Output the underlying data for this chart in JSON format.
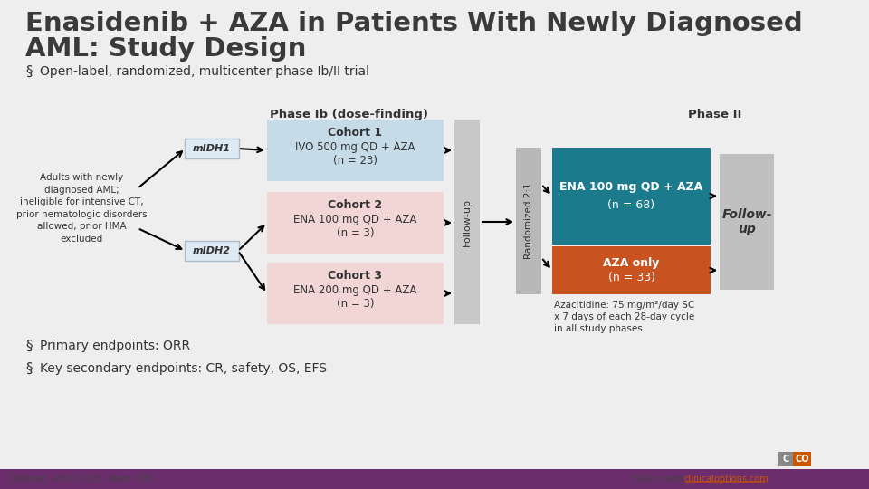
{
  "title_line1": "Enasidenib + AZA in Patients With Newly Diagnosed",
  "title_line2": "AML: Study Design",
  "title_color": "#3a3a3a",
  "bg_color": "#eeeeee",
  "bullet1": "Open-label, randomized, multicenter phase Ib/II trial",
  "bullet2": "Primary endpoints: ORR",
  "bullet3": "Key secondary endpoints: CR, safety, OS, EFS",
  "footer_left": "DiNardo. ASCO 2020. Abstr 7501.",
  "footer_right_plain": "Slide credit: ",
  "footer_link": "clinicaloptions.com",
  "phase1b_label": "Phase Ib (dose-finding)",
  "phase2_label": "Phase II",
  "cohort1_bg": "#c5dce8",
  "cohort1_title": "Cohort 1",
  "cohort1_body": "IVO 500 mg QD + AZA\n(n = 23)",
  "cohort2_bg": "#f2d5d5",
  "cohort2_title": "Cohort 2",
  "cohort2_body": "ENA 100 mg QD + AZA\n(n = 3)",
  "cohort3_bg": "#f2d5d5",
  "cohort3_title": "Cohort 3",
  "cohort3_body": "ENA 200 mg QD + AZA\n(n = 3)",
  "midh1_label": "mIDH1",
  "midh2_label": "mIDH2",
  "midh_bg": "#ddeaf4",
  "midh_border": "#aabbcc",
  "patient_text": "Adults with newly\ndiagnosed AML;\nineligible for intensive CT,\nprior hematologic disorders\nallowed, prior HMA\nexcluded",
  "followup_bg": "#c8c8c8",
  "followup_label": "Follow-up",
  "randomized_bg": "#b8b8b8",
  "randomized_label": "Randomized 2:1",
  "ena_bg": "#1b7a8c",
  "ena_text_bold": "ENA",
  "ena_text_rest": " 100 mg QD + ",
  "ena_text_aza": "AZA",
  "ena_text_n": "(n = 68)",
  "aza_bg": "#c95320",
  "aza_text_bold": "AZA",
  "aza_text_rest": " only",
  "aza_text_n": "(n = 33)",
  "followup2_bg": "#c0c0c0",
  "followup2_label": "Follow-\nup",
  "aza_note": "Azacitidine: 75 mg/m²/day SC\nx 7 days of each 28-day cycle\nin all study phases",
  "accent_color": "#6b2d6b",
  "orange_color": "#cc5500",
  "cco_purple": "#6b2d6b",
  "cco_orange": "#cc5500"
}
